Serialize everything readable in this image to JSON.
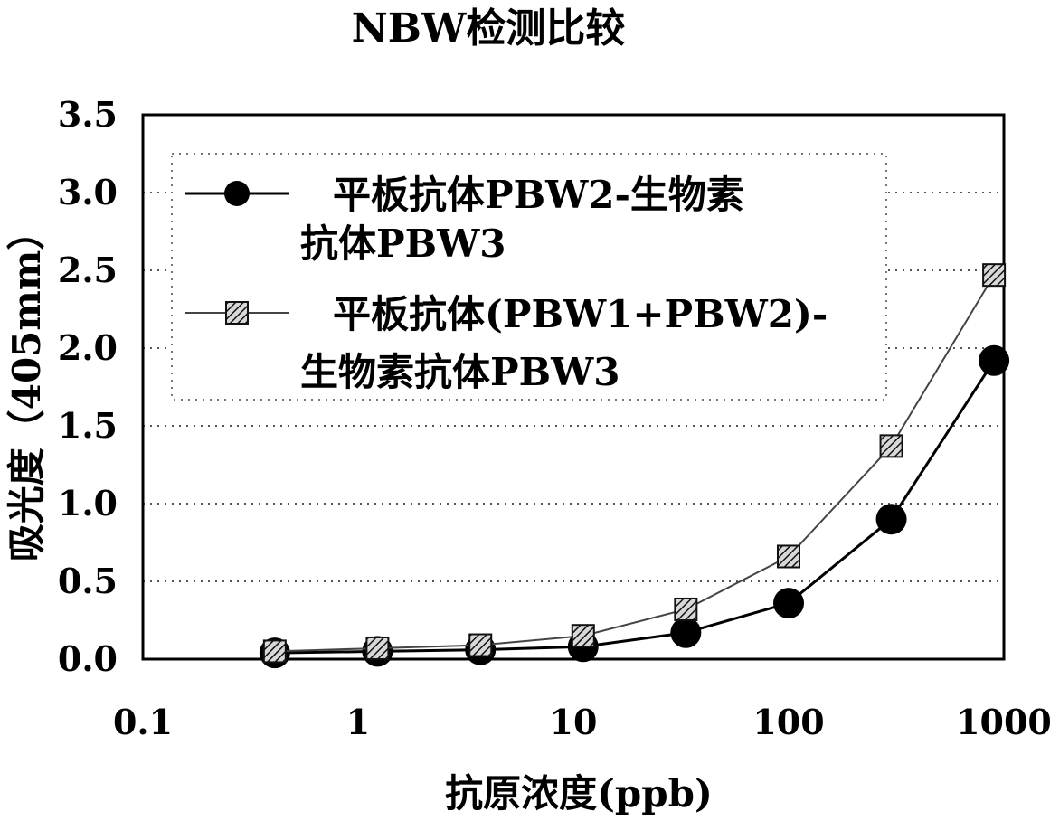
{
  "chart_data": {
    "type": "line",
    "title": "NBW检测比较",
    "xlabel": "抗原浓度(ppb)",
    "ylabel": "吸光度（405mm）",
    "x_scale": "log",
    "xlim": [
      0.1,
      1000
    ],
    "ylim": [
      0.0,
      3.5
    ],
    "x_ticks": [
      "0.1",
      "1",
      "10",
      "100",
      "1000"
    ],
    "y_ticks": [
      "0.0",
      "0.5",
      "1.0",
      "1.5",
      "2.0",
      "2.5",
      "3.0",
      "3.5"
    ],
    "grid": "horizontal dotted",
    "legend_position": "top-left",
    "x": [
      0.41,
      1.23,
      3.7,
      11.1,
      33.3,
      100,
      300,
      900
    ],
    "series": [
      {
        "name": "平板抗体PBW2-生物素抗体PBW3",
        "name_lines": [
          "平板抗体PBW2-生物素",
          "抗体PBW3"
        ],
        "marker": "circle",
        "color": "#000000",
        "values": [
          0.04,
          0.05,
          0.06,
          0.08,
          0.17,
          0.36,
          0.9,
          1.92
        ]
      },
      {
        "name": "平板抗体(PBW1+PBW2)-生物素抗体PBW3",
        "name_lines": [
          "平板抗体(PBW1+PBW2)-",
          "生物素抗体PBW3"
        ],
        "marker": "hatched-square",
        "color": "#444444",
        "values": [
          0.05,
          0.07,
          0.09,
          0.15,
          0.32,
          0.66,
          1.37,
          2.47
        ]
      }
    ]
  }
}
